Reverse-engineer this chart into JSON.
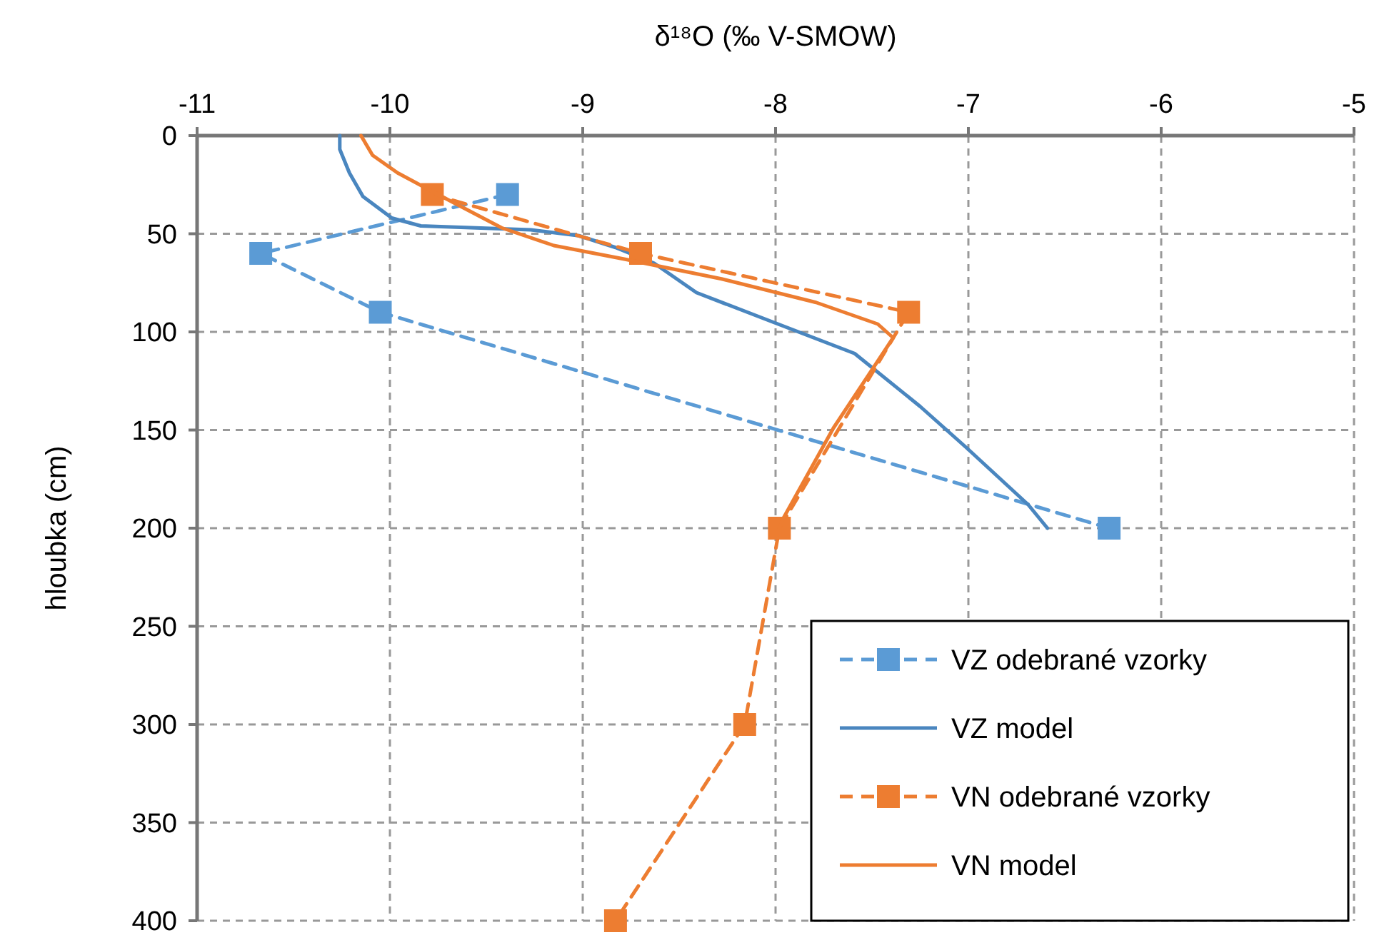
{
  "chart_data": {
    "type": "line",
    "xlabel": "δ¹⁸O (‰ V-SMOW)",
    "ylabel": "hloubka (cm)",
    "xlim": [
      -11,
      -5
    ],
    "xticks": [
      -11,
      -10,
      -9,
      -8,
      -7,
      -6,
      -5
    ],
    "ylim": [
      400,
      0
    ],
    "yticks": [
      0,
      50,
      100,
      150,
      200,
      250,
      300,
      350,
      400
    ],
    "grid": true,
    "legend": "bottom right",
    "series": [
      {
        "name": "VZ odebrané vzorky",
        "color": "#5b9bd5",
        "marker": "square",
        "line_style": "dashed",
        "x": [
          -9.39,
          -10.67,
          -10.05,
          -6.27
        ],
        "values": [
          30,
          60,
          90,
          200
        ]
      },
      {
        "name": "VZ model",
        "color": "#4a86bf",
        "marker": "none",
        "line_style": "solid",
        "x": [
          -10.26,
          -10.26,
          -10.21,
          -10.14,
          -9.99,
          -9.84,
          -9.27,
          -9.02,
          -8.83,
          -8.63,
          -8.41,
          -8.04,
          -7.59,
          -7.25,
          -7.01,
          -6.69,
          -6.59
        ],
        "values": [
          0,
          7,
          19,
          31,
          42,
          46,
          48,
          51,
          57,
          65,
          80,
          94,
          111,
          138,
          159,
          188,
          200
        ]
      },
      {
        "name": "VN odebrané vzorky",
        "color": "#ed7d31",
        "marker": "square",
        "line_style": "dashed",
        "x": [
          -9.78,
          -8.7,
          -7.31,
          -7.98,
          -8.16,
          -8.83
        ],
        "values": [
          30,
          60,
          90,
          200,
          300,
          400
        ]
      },
      {
        "name": "VN model",
        "color": "#ed7d31",
        "marker": "none",
        "line_style": "solid",
        "x": [
          -10.15,
          -10.09,
          -9.96,
          -9.77,
          -9.42,
          -9.15,
          -8.78,
          -8.28,
          -7.79,
          -7.47,
          -7.39,
          -7.7,
          -7.96,
          -7.98
        ],
        "values": [
          0,
          10,
          19,
          29,
          47,
          56,
          63,
          73,
          85,
          96,
          103,
          149,
          195,
          200
        ]
      }
    ]
  }
}
